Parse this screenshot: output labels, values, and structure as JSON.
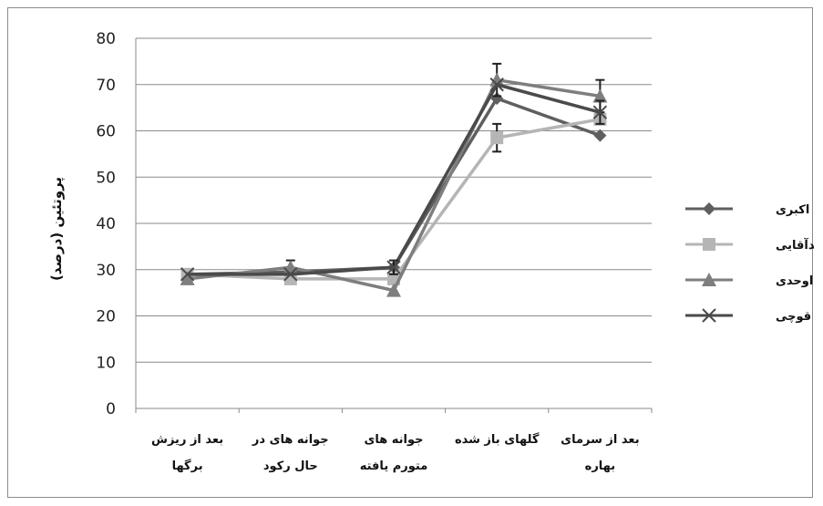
{
  "chart_data": {
    "type": "line",
    "ylabel": "پروتئین (درصد)",
    "ylim": [
      0,
      80
    ],
    "yticks": [
      0,
      10,
      20,
      30,
      40,
      50,
      60,
      70,
      80
    ],
    "grid": "horizontal",
    "legend_position": "right",
    "categories": [
      [
        "بعد از ریزش",
        "برگها"
      ],
      [
        "جوانه های در",
        "حال رکود"
      ],
      [
        "جوانه های",
        "متورم یافته"
      ],
      [
        "گلهای باز شده"
      ],
      [
        "بعد از سرمای",
        "بهاره"
      ]
    ],
    "series": [
      {
        "name": "اکبری",
        "marker": "diamond",
        "color": "#5f5f5f",
        "values": [
          29,
          29.5,
          30.5,
          67,
          59
        ],
        "errors": [
          0,
          0,
          0,
          0,
          0
        ]
      },
      {
        "name": "احمدآقایی",
        "marker": "square",
        "color": "#b5b5b5",
        "values": [
          29,
          28,
          28,
          58.5,
          62.5
        ],
        "errors": [
          0,
          0,
          0,
          3,
          0
        ]
      },
      {
        "name": "اوحدی",
        "marker": "triangle",
        "color": "#7e7e7e",
        "values": [
          28,
          30.5,
          25.5,
          71,
          67.5
        ],
        "errors": [
          0,
          1.5,
          0,
          3.5,
          3.5
        ]
      },
      {
        "name": "کله قوچی",
        "marker": "x",
        "color": "#4a4a4a",
        "values": [
          29,
          29,
          30.5,
          70,
          64
        ],
        "errors": [
          0,
          0,
          1.5,
          0,
          2.5
        ]
      }
    ]
  }
}
